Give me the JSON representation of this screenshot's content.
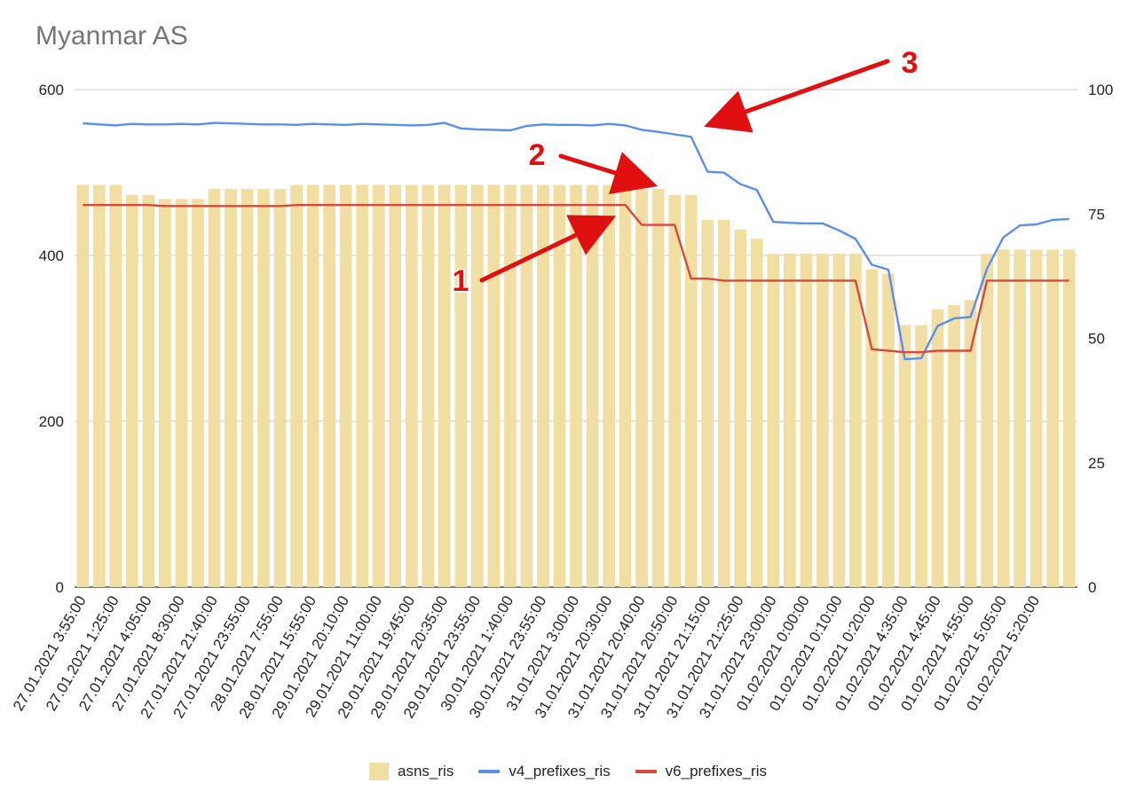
{
  "chart_data": {
    "type": "bar",
    "title": "Myanmar AS",
    "xlabel": "",
    "ylabel": "",
    "y_left_ticks": [
      "0",
      "200",
      "400",
      "600"
    ],
    "y_left_range": [
      0,
      600
    ],
    "y_right_ticks": [
      "0",
      "25",
      "50",
      "75",
      "100"
    ],
    "y_right_range": [
      0,
      100
    ],
    "grid": true,
    "legend_position": "bottom",
    "x_tick_labels": [
      "27.01.2021 3:55:00",
      "27.01.2021 1:25:00",
      "27.01.2021 4:05:00",
      "27.01.2021 8:30:00",
      "27.01.2021 21:40:00",
      "27.01.2021 23:55:00",
      "28.01.2021 7:55:00",
      "28.01.2021 15:55:00",
      "29.01.2021 20:10:00",
      "29.01.2021 11:00:00",
      "29.01.2021 19:45:00",
      "29.01.2021 20:35:00",
      "29.01.2021 23:55:00",
      "30.01.2021 1:40:00",
      "30.01.2021 23:55:00",
      "31.01.2021 3:00:00",
      "31.01.2021 20:30:00",
      "31.01.2021 20:40:00",
      "31.01.2021 20:50:00",
      "31.01.2021 21:15:00",
      "31.01.2021 21:25:00",
      "31.01.2021 23:00:00",
      "01.02.2021 0:00:00",
      "01.02.2021 0:10:00",
      "01.02.2021 0:20:00",
      "01.02.2021 4:35:00",
      "01.02.2021 4:45:00",
      "01.02.2021 4:55:00",
      "01.02.2021 5:05:00",
      "01.02.2021 5:20:00"
    ],
    "series": [
      {
        "name": "asns_ris",
        "type": "bar",
        "axis": "left",
        "color": "#f1dea3",
        "values": [
          485,
          485,
          485,
          473,
          473,
          468,
          468,
          468,
          480,
          480,
          480,
          480,
          480,
          485,
          485,
          485,
          485,
          485,
          485,
          485,
          485,
          485,
          485,
          485,
          485,
          485,
          485,
          485,
          485,
          485,
          485,
          485,
          485,
          485,
          480,
          480,
          473,
          473,
          443,
          443,
          431,
          420,
          402,
          402,
          402,
          402,
          402,
          402,
          383,
          378,
          316,
          316,
          335,
          340,
          346,
          402,
          407,
          407,
          407,
          407,
          407
        ]
      },
      {
        "name": "v4_prefixes_ris",
        "type": "line",
        "axis": "right",
        "color": "#5b8def",
        "values": [
          93.2,
          93.0,
          92.8,
          93.1,
          93.0,
          93.0,
          93.1,
          93.0,
          93.3,
          93.2,
          93.1,
          93.0,
          93.0,
          92.9,
          93.1,
          93.0,
          92.9,
          93.1,
          93.0,
          92.9,
          92.8,
          92.9,
          93.3,
          92.2,
          92.0,
          91.9,
          91.8,
          92.7,
          93.0,
          92.9,
          92.9,
          92.8,
          93.1,
          92.8,
          91.9,
          91.5,
          91.0,
          90.5,
          83.5,
          83.3,
          81.0,
          79.8,
          73.4,
          73.2,
          73.1,
          73.1,
          71.7,
          70.0,
          64.8,
          63.8,
          45.8,
          46.0,
          52.5,
          54.0,
          54.3,
          64.0,
          70.3,
          72.7,
          72.9,
          73.8,
          74.0
        ]
      },
      {
        "name": "v6_prefixes_ris",
        "type": "line",
        "axis": "right",
        "color": "#d9493a",
        "values": [
          76.8,
          76.8,
          76.8,
          76.8,
          76.8,
          76.6,
          76.6,
          76.6,
          76.6,
          76.6,
          76.6,
          76.6,
          76.6,
          76.8,
          76.8,
          76.8,
          76.8,
          76.8,
          76.8,
          76.8,
          76.8,
          76.8,
          76.8,
          76.8,
          76.8,
          76.8,
          76.8,
          76.8,
          76.8,
          76.8,
          76.8,
          76.8,
          76.8,
          76.8,
          72.8,
          72.8,
          72.8,
          62.0,
          62.0,
          61.6,
          61.6,
          61.6,
          61.6,
          61.6,
          61.6,
          61.6,
          61.6,
          61.6,
          47.8,
          47.5,
          47.2,
          47.2,
          47.5,
          47.5,
          47.5,
          61.6,
          61.6,
          61.6,
          61.6,
          61.6,
          61.6
        ]
      }
    ],
    "annotations": [
      {
        "label": "1"
      },
      {
        "label": "2"
      },
      {
        "label": "3"
      }
    ]
  }
}
